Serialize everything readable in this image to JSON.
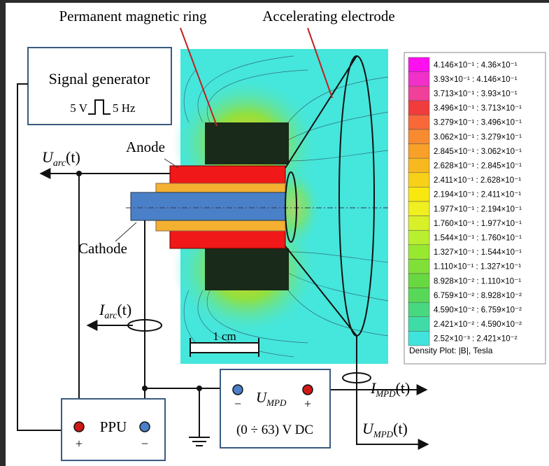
{
  "labels": {
    "ring": "Permanent magnetic ring",
    "electrode": "Accelerating electrode",
    "anode": "Anode",
    "cathode": "Cathode",
    "scale": "1 cm"
  },
  "signal_generator": {
    "title": "Signal generator",
    "voltage": "5 V",
    "frequency": "5 Hz"
  },
  "u_arc": {
    "symbol": "U",
    "subscript": "arc",
    "argument": "(t)"
  },
  "i_arc": {
    "symbol": "I",
    "subscript": "arc",
    "argument": "(t)"
  },
  "ppu": {
    "label": "PPU",
    "plus": "+",
    "minus": "−"
  },
  "mpd_supply": {
    "symbol": "U",
    "subscript": "MPD",
    "minus": "−",
    "plus": "+",
    "range": "(0 ÷ 63) V DC"
  },
  "i_mpd": {
    "symbol": "I",
    "subscript": "MPD",
    "argument": "(t)"
  },
  "u_mpd": {
    "symbol": "U",
    "subscript": "MPD",
    "argument": "(t)"
  },
  "legend": {
    "rows": [
      {
        "label": "4.146×10⁻¹ : 4.36×10⁻¹",
        "color": "#ff10f0"
      },
      {
        "label": "3.93×10⁻¹ : 4.146×10⁻¹",
        "color": "#f030c8"
      },
      {
        "label": "3.713×10⁻¹ : 3.93×10⁻¹",
        "color": "#f0409a"
      },
      {
        "label": "3.496×10⁻¹ : 3.713×10⁻¹",
        "color": "#f03c3c"
      },
      {
        "label": "3.279×10⁻¹ : 3.496×10⁻¹",
        "color": "#f86838"
      },
      {
        "label": "3.062×10⁻¹ : 3.279×10⁻¹",
        "color": "#f88a30"
      },
      {
        "label": "2.845×10⁻¹ : 3.062×10⁻¹",
        "color": "#f8a028"
      },
      {
        "label": "2.628×10⁻¹ : 2.845×10⁻¹",
        "color": "#f8b820"
      },
      {
        "label": "2.411×10⁻¹ : 2.628×10⁻¹",
        "color": "#f8d018"
      },
      {
        "label": "2.194×10⁻¹ : 2.411×10⁻¹",
        "color": "#f8e810"
      },
      {
        "label": "1.977×10⁻¹ : 2.194×10⁻¹",
        "color": "#f0f020"
      },
      {
        "label": "1.760×10⁻¹ : 1.977×10⁻¹",
        "color": "#d8f028"
      },
      {
        "label": "1.544×10⁻¹ : 1.760×10⁻¹",
        "color": "#b8f030"
      },
      {
        "label": "1.327×10⁻¹ : 1.544×10⁻¹",
        "color": "#98e830"
      },
      {
        "label": "1.110×10⁻¹ : 1.327×10⁻¹",
        "color": "#80e038"
      },
      {
        "label": "8.928×10⁻² : 1.110×10⁻¹",
        "color": "#68d840"
      },
      {
        "label": "6.759×10⁻² : 8.928×10⁻²",
        "color": "#58d858"
      },
      {
        "label": "4.590×10⁻² : 6.759×10⁻²",
        "color": "#48d880"
      },
      {
        "label": "2.421×10⁻² : 4.590×10⁻²",
        "color": "#40dca8"
      },
      {
        "label": "2.52×10⁻³ : 2.421×10⁻²",
        "color": "#40e4dc"
      }
    ],
    "caption": "Density Plot: |B|, Tesla"
  }
}
